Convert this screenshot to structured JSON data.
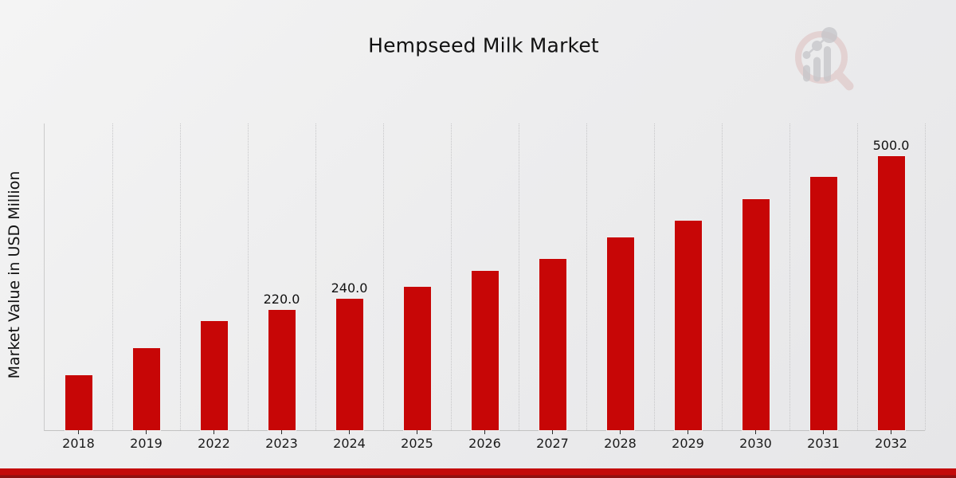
{
  "page": {
    "background_top": "#f4f4f4",
    "background_bottom": "#e6e6e8"
  },
  "chart_data": {
    "type": "bar",
    "title": "Hempseed Milk Market",
    "xlabel": "",
    "ylabel": "Market Value in USD Million",
    "categories": [
      "2018",
      "2019",
      "2022",
      "2023",
      "2024",
      "2025",
      "2026",
      "2027",
      "2028",
      "2029",
      "2030",
      "2031",
      "2032"
    ],
    "values": [
      100,
      150,
      200,
      220,
      240,
      262,
      291,
      313,
      352,
      382,
      422,
      462,
      500
    ],
    "bar_value_labels": [
      "",
      "",
      "",
      "220.0",
      "240.0",
      "",
      "",
      "",
      "",
      "",
      "",
      "",
      "500.0"
    ],
    "ylim": [
      0,
      560
    ],
    "grid": "vertical-dotted",
    "legend_position": "none",
    "bar_color": "#c70606",
    "bar_edge_color": "#efefef",
    "grid_color": "#c6c6c8",
    "tick_color": "#2b2b2b"
  },
  "watermark": {
    "name": "magnifier-bar-chart-logo",
    "ring_color": "#ddbebe",
    "bars_color": "#c5c5c9"
  },
  "footer_banner": {
    "color": "#c30b0b",
    "edge_color": "#8e1111"
  }
}
